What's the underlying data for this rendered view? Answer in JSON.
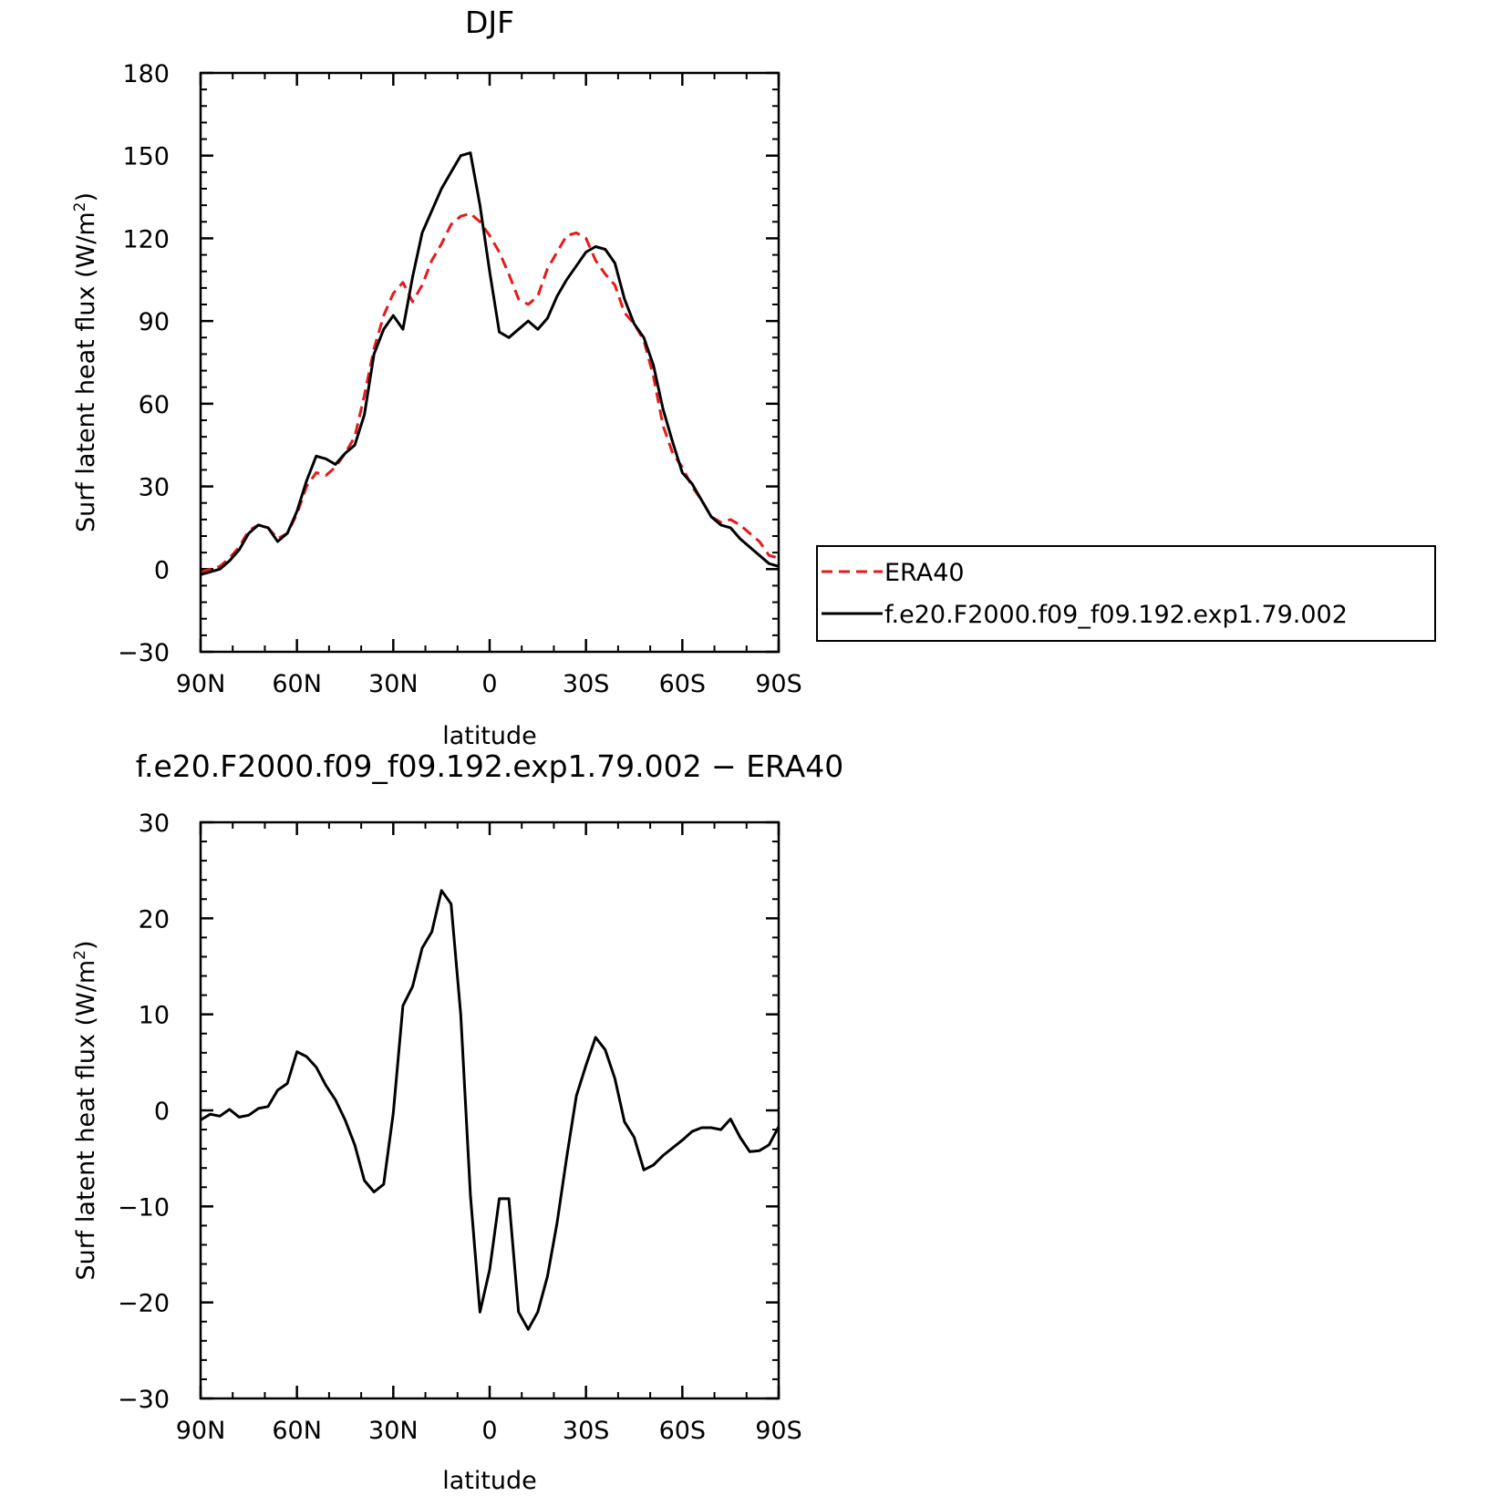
{
  "chart_data": [
    {
      "type": "line",
      "title": "DJF",
      "xlabel": "latitude",
      "ylabel": "Surf latent heat flux (W/m²)",
      "ylabel_base": "Surf latent heat flux (W/m",
      "ylabel_sup": "2",
      "ylabel_end": ")",
      "xlim": [
        -90,
        90
      ],
      "ylim": [
        -30,
        180
      ],
      "x_ticks": [
        {
          "value": -90,
          "label": "90N"
        },
        {
          "value": -60,
          "label": "60N"
        },
        {
          "value": -30,
          "label": "30N"
        },
        {
          "value": 0,
          "label": "0"
        },
        {
          "value": 30,
          "label": "30S"
        },
        {
          "value": 60,
          "label": "60S"
        },
        {
          "value": 90,
          "label": "90S"
        }
      ],
      "y_ticks": [
        {
          "value": -30,
          "label": "−30"
        },
        {
          "value": 0,
          "label": "0"
        },
        {
          "value": 30,
          "label": "30"
        },
        {
          "value": 60,
          "label": "60"
        },
        {
          "value": 90,
          "label": "90"
        },
        {
          "value": 120,
          "label": "120"
        },
        {
          "value": 150,
          "label": "150"
        },
        {
          "value": 180,
          "label": "180"
        }
      ],
      "grid": false,
      "legend": "outside-right",
      "x": [
        -90,
        -87,
        -84,
        -81,
        -78,
        -75,
        -72,
        -69,
        -66,
        -63,
        -60,
        -57,
        -54,
        -51,
        -48,
        -45,
        -42,
        -39,
        -36,
        -33,
        -30,
        -27,
        -24,
        -21,
        -18,
        -15,
        -12,
        -9,
        -6,
        -3,
        0,
        3,
        6,
        9,
        12,
        15,
        18,
        21,
        24,
        27,
        30,
        33,
        36,
        39,
        42,
        45,
        48,
        51,
        54,
        57,
        60,
        63,
        66,
        69,
        72,
        75,
        78,
        81,
        84,
        87,
        90
      ],
      "series": [
        {
          "name": "ERA40",
          "color": "#e41a1c",
          "dash": "dashed",
          "values": [
            -1,
            0,
            1,
            4,
            8,
            14,
            16,
            15,
            11,
            13,
            20,
            30,
            35,
            34,
            37,
            42,
            48,
            63,
            80,
            92,
            100,
            104,
            97,
            103,
            112,
            118,
            125,
            128,
            129,
            126,
            121,
            115,
            107,
            98,
            96,
            99,
            109,
            115,
            121,
            122,
            120,
            112,
            107,
            103,
            93,
            89,
            83,
            70,
            52,
            42,
            37,
            30,
            25,
            19,
            17,
            18,
            16,
            13,
            10,
            5,
            4
          ]
        },
        {
          "name": "f.e20.F2000.f09_f09.192.exp1.79.002",
          "color": "#000000",
          "dash": "solid",
          "values": [
            -2,
            -1,
            0,
            3,
            7,
            13,
            16,
            15,
            10,
            13,
            21,
            32,
            41,
            40,
            38,
            42,
            45,
            56,
            78,
            87,
            92,
            87,
            106,
            122,
            130,
            138,
            144,
            150,
            151,
            132,
            108,
            86,
            84,
            87,
            90,
            87,
            91,
            99,
            105,
            110,
            115,
            117,
            116,
            111,
            98,
            89,
            84,
            74,
            58,
            46,
            35,
            31,
            25,
            19,
            16,
            15,
            11,
            8,
            5,
            2,
            1
          ]
        }
      ]
    },
    {
      "type": "line",
      "title": "f.e20.F2000.f09_f09.192.exp1.79.002 − ERA40",
      "xlabel": "latitude",
      "ylabel": "Surf latent heat flux (W/m²)",
      "ylabel_base": "Surf latent heat flux (W/m",
      "ylabel_sup": "2",
      "ylabel_end": ")",
      "xlim": [
        -90,
        90
      ],
      "ylim": [
        -30,
        30
      ],
      "x_ticks": [
        {
          "value": -90,
          "label": "90N"
        },
        {
          "value": -60,
          "label": "60N"
        },
        {
          "value": -30,
          "label": "30N"
        },
        {
          "value": 0,
          "label": "0"
        },
        {
          "value": 30,
          "label": "30S"
        },
        {
          "value": 60,
          "label": "60S"
        },
        {
          "value": 90,
          "label": "90S"
        }
      ],
      "y_ticks": [
        {
          "value": -30,
          "label": "−30"
        },
        {
          "value": -20,
          "label": "−20"
        },
        {
          "value": -10,
          "label": "−10"
        },
        {
          "value": 0,
          "label": "0"
        },
        {
          "value": 10,
          "label": "10"
        },
        {
          "value": 20,
          "label": "20"
        },
        {
          "value": 30,
          "label": "30"
        }
      ],
      "grid": false,
      "x": [
        -90,
        -87,
        -84,
        -81,
        -78,
        -75,
        -72,
        -69,
        -66,
        -63,
        -60,
        -57,
        -54,
        -51,
        -48,
        -45,
        -42,
        -39,
        -36,
        -33,
        -30,
        -27,
        -24,
        -21,
        -18,
        -15,
        -12,
        -9,
        -6,
        -3,
        0,
        3,
        6,
        9,
        12,
        15,
        18,
        21,
        24,
        27,
        30,
        33,
        36,
        39,
        42,
        45,
        48,
        51,
        54,
        57,
        60,
        63,
        66,
        69,
        72,
        75,
        78,
        81,
        84,
        87,
        90
      ],
      "series": [
        {
          "color": "#000000",
          "dash": "solid",
          "values": [
            -1,
            -0.4,
            -0.6,
            0.1,
            -0.7,
            -0.5,
            0.2,
            0.4,
            2.1,
            2.8,
            6.1,
            5.6,
            4.5,
            2.6,
            1.1,
            -1,
            -3.6,
            -7.3,
            -8.5,
            -7.7,
            -0.3,
            10.9,
            12.9,
            16.9,
            18.6,
            22.9,
            21.5,
            10,
            -8.8,
            -21,
            -16.6,
            -9.2,
            -9.2,
            -21,
            -22.8,
            -21,
            -17.3,
            -11.7,
            -4.9,
            1.5,
            4.7,
            7.6,
            6.3,
            3.3,
            -1.2,
            -2.8,
            -6.2,
            -5.7,
            -4.7,
            -3.9,
            -3.1,
            -2.2,
            -1.8,
            -1.8,
            -2,
            -0.9,
            -2.8,
            -4.3,
            -4.2,
            -3.6,
            -1.7
          ]
        }
      ]
    }
  ]
}
